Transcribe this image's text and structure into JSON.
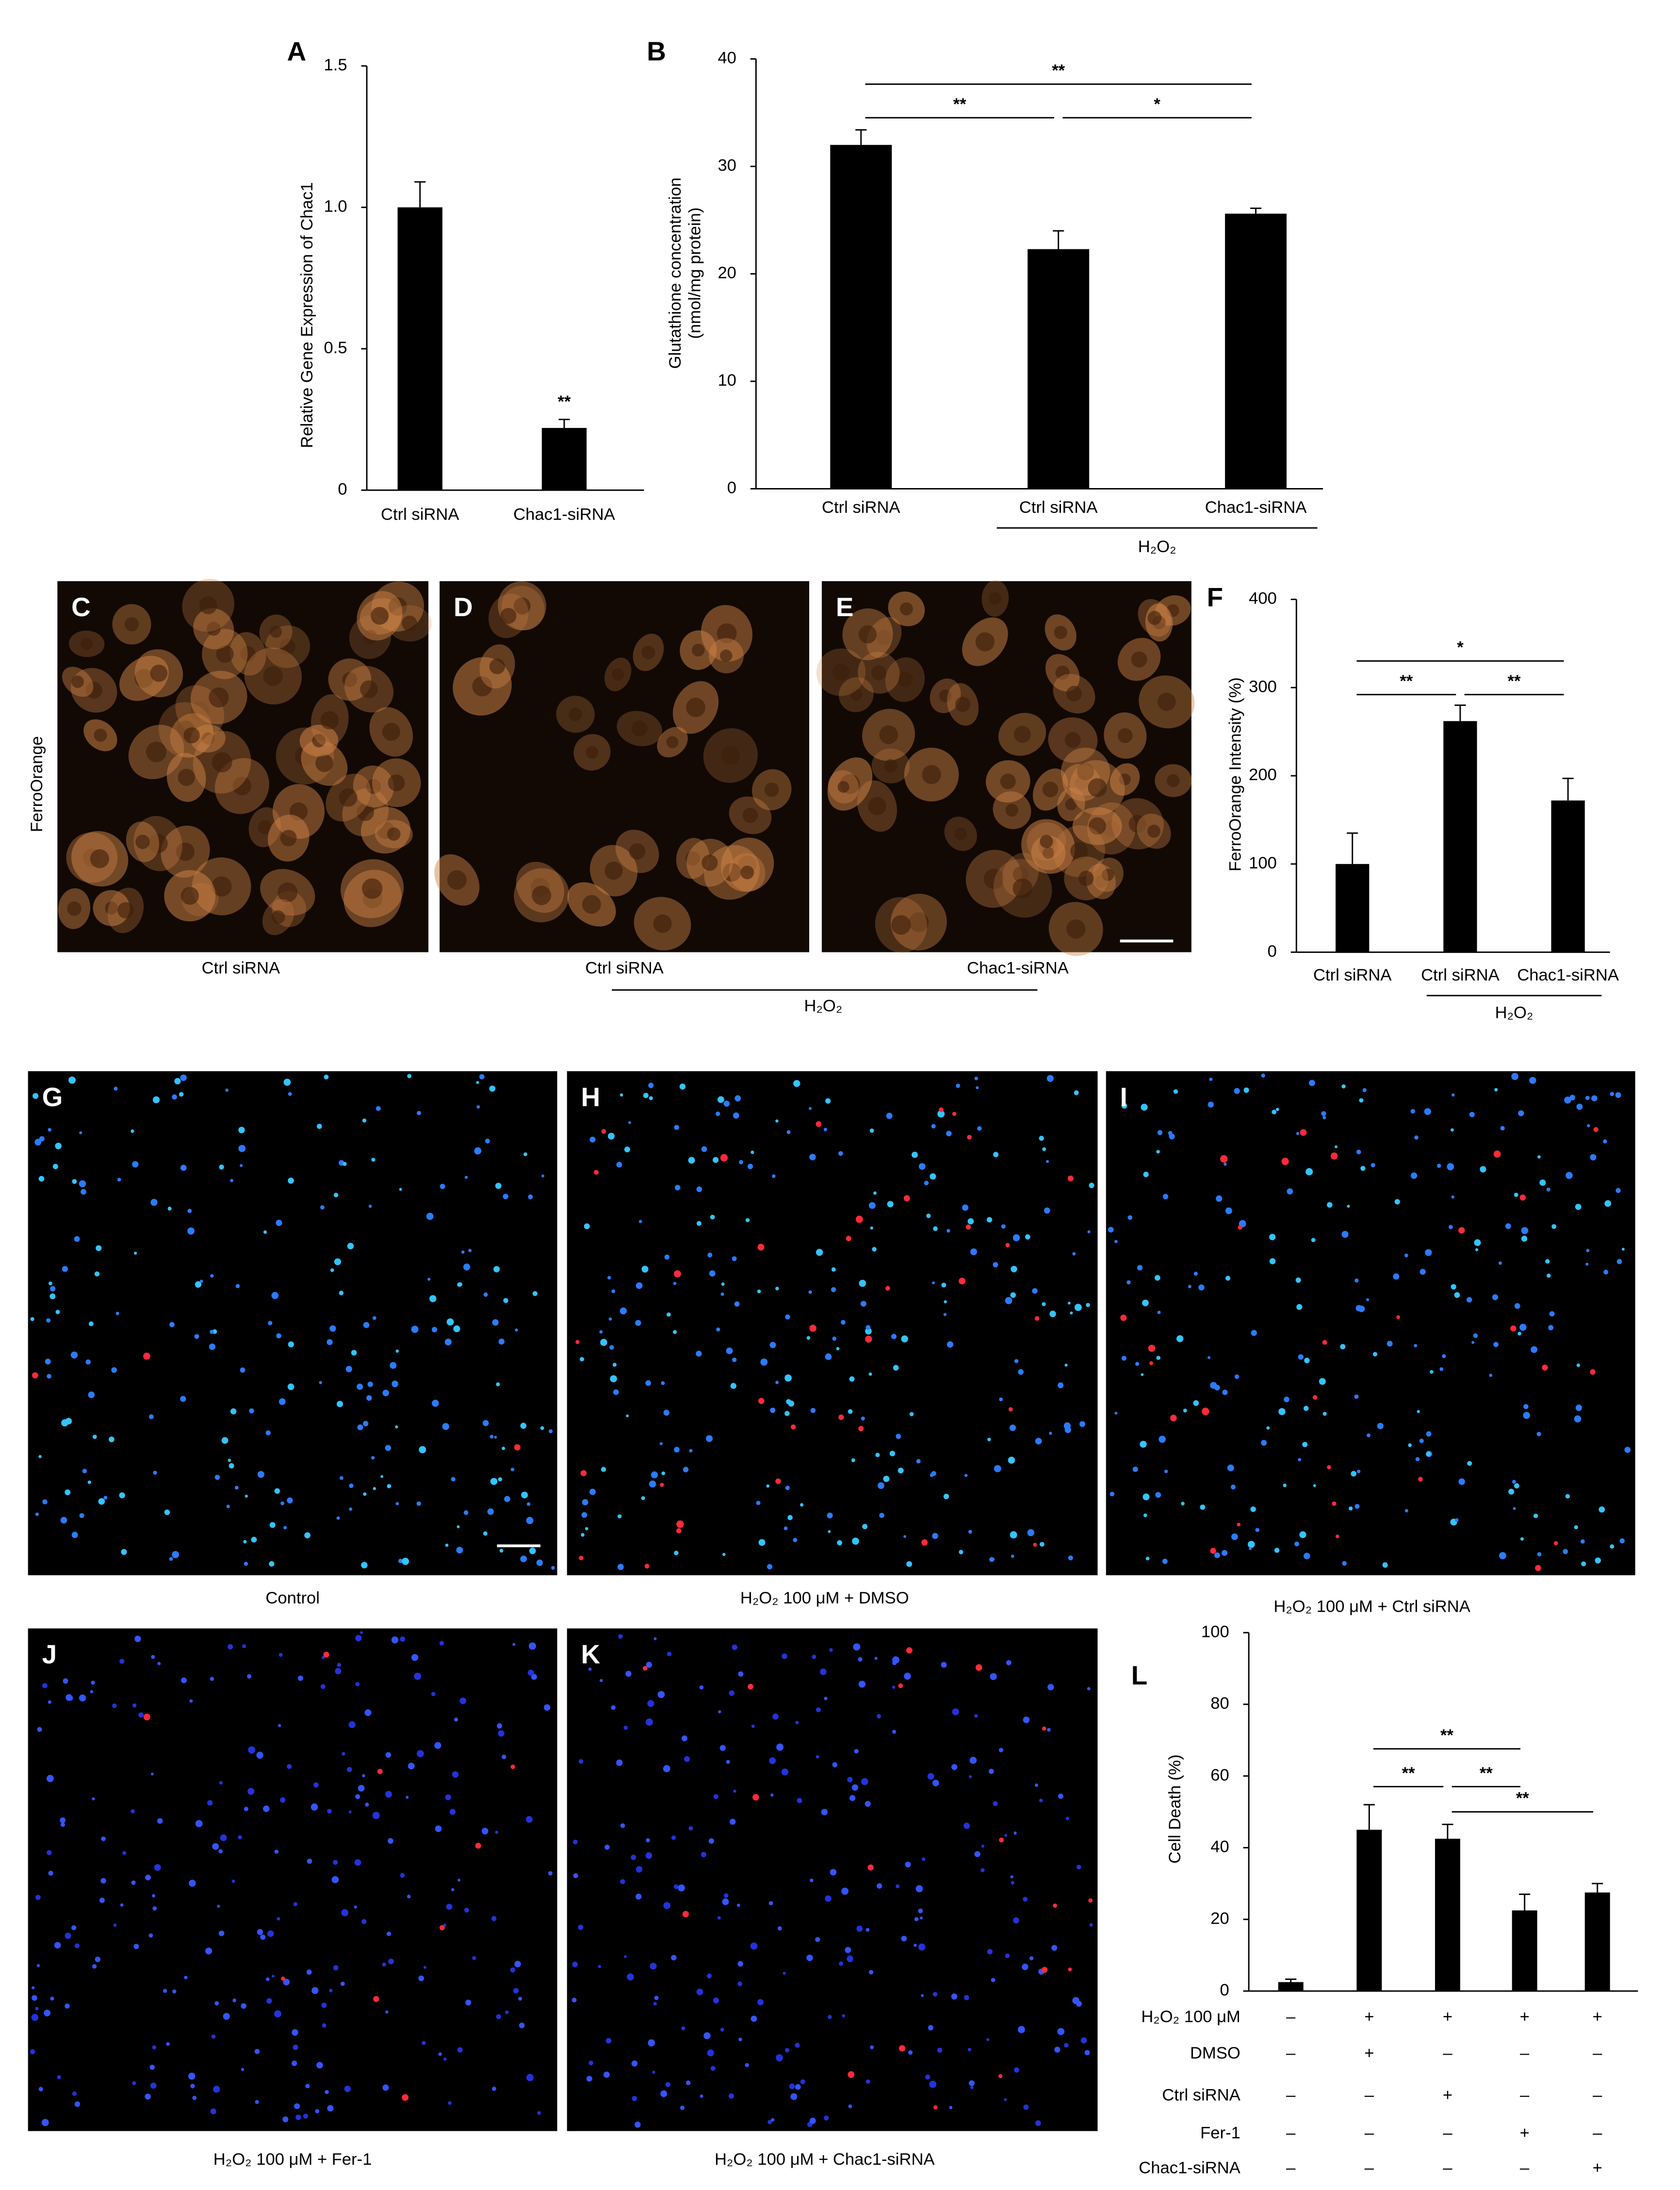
{
  "chart_data": [
    {
      "type": "bar",
      "panel": "A",
      "y_label": [
        "Relative Gene Expression of Chac1"
      ],
      "categories": [
        "Ctrl siRNA",
        "Chac1-siRNA"
      ],
      "values": [
        1.0,
        0.22
      ],
      "errors": [
        0.09,
        0.03
      ],
      "color": "#000000",
      "ylim": [
        0,
        1.5
      ],
      "yticks": [
        0,
        0.5,
        {
          "value": 1,
          "label": "1.0"
        },
        1.5
      ],
      "annotations": [
        {
          "category": 1,
          "text": "**"
        }
      ]
    },
    {
      "type": "bar",
      "panel": "B",
      "y_label": [
        "Glutathione concentration",
        "(nmol/mg protein)"
      ],
      "categories": [
        "Ctrl siRNA",
        "Ctrl siRNA",
        "Chac1-siRNA"
      ],
      "values": [
        32,
        22.3,
        25.6
      ],
      "errors": [
        1.4,
        1.7,
        0.5
      ],
      "color": "#000000",
      "ylim": [
        0,
        40
      ],
      "yticks": [
        0,
        10,
        20,
        30,
        40
      ],
      "significance": [
        {
          "pair": [
            0,
            2
          ],
          "text": "**"
        },
        {
          "pair": [
            0,
            1
          ],
          "text": "**"
        },
        {
          "pair": [
            1,
            2
          ],
          "text": "*"
        }
      ],
      "group_label": {
        "text": "H₂O₂",
        "span": [
          1,
          2
        ]
      }
    },
    {
      "type": "bar",
      "panel": "F",
      "y_label": [
        "FerroOrange Intensity (%)"
      ],
      "categories": [
        "Ctrl siRNA",
        "Ctrl siRNA",
        "Chac1-siRNA"
      ],
      "values": [
        100,
        262,
        172
      ],
      "errors": [
        35,
        18,
        25
      ],
      "color": "#000000",
      "ylim": [
        0,
        400
      ],
      "yticks": [
        0,
        100,
        200,
        300,
        400
      ],
      "significance": [
        {
          "pair": [
            0,
            2
          ],
          "text": "*"
        },
        {
          "pair": [
            0,
            1
          ],
          "text": "**"
        },
        {
          "pair": [
            1,
            2
          ],
          "text": "**"
        }
      ],
      "group_label": {
        "text": "H₂O₂",
        "span": [
          1,
          2
        ]
      }
    },
    {
      "type": "bar",
      "panel": "L",
      "y_label": [
        "Cell Death (%)"
      ],
      "values": [
        2.5,
        45,
        42.5,
        22.5,
        27.5
      ],
      "errors": [
        0.8,
        7,
        4,
        4.5,
        2.5
      ],
      "color": "#000000",
      "ylim": [
        0,
        100
      ],
      "yticks": [
        0,
        20,
        40,
        60,
        80,
        100
      ],
      "significance": [
        {
          "pair": [
            1,
            3
          ],
          "text": "**"
        },
        {
          "pair": [
            1,
            2
          ],
          "text": "**"
        },
        {
          "pair": [
            2,
            3
          ],
          "text": "**"
        },
        {
          "pair": [
            2,
            4
          ],
          "text": "**"
        }
      ],
      "conditions": [
        {
          "label": "H₂O₂ 100 μM",
          "signs": [
            "–",
            "+",
            "+",
            "+",
            "+"
          ]
        },
        {
          "label": "DMSO",
          "signs": [
            "–",
            "+",
            "–",
            "–",
            "–"
          ]
        },
        {
          "label": "Ctrl siRNA",
          "signs": [
            "–",
            "–",
            "+",
            "–",
            "–"
          ]
        },
        {
          "label": "Fer-1",
          "signs": [
            "–",
            "–",
            "–",
            "+",
            "–"
          ]
        },
        {
          "label": "Chac1-siRNA",
          "signs": [
            "–",
            "–",
            "–",
            "–",
            "+"
          ]
        }
      ]
    }
  ],
  "images": [
    {
      "panel": "C",
      "label": "Ctrl siRNA"
    },
    {
      "panel": "D",
      "label": "Ctrl siRNA"
    },
    {
      "panel": "E",
      "label": "Chac1-siRNA"
    },
    {
      "panel": "G",
      "label": "Control"
    },
    {
      "panel": "H",
      "label": "H₂O₂ 100 μM + DMSO"
    },
    {
      "panel": "I",
      "label": "H₂O₂ 100 μM + Ctrl siRNA"
    },
    {
      "panel": "J",
      "label": "H₂O₂ 100 μM + Fer-1"
    },
    {
      "panel": "K",
      "label": "H₂O₂ 100 μM + Chac1-siRNA"
    }
  ],
  "image_group_label": "H₂O₂",
  "image_side_label": "FerroOrange"
}
